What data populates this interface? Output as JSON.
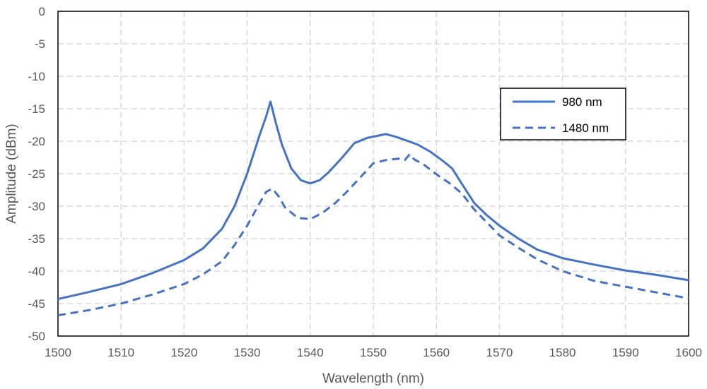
{
  "chart_data": {
    "type": "line",
    "title": "",
    "xlabel": "Wavelength (nm)",
    "ylabel": "Amplitude (dBm)",
    "xlim": [
      1500,
      1600
    ],
    "ylim": [
      -50,
      0
    ],
    "xticks": [
      1500,
      1510,
      1520,
      1530,
      1540,
      1550,
      1560,
      1570,
      1580,
      1590,
      1600
    ],
    "yticks": [
      0,
      -5,
      -10,
      -15,
      -20,
      -25,
      -30,
      -35,
      -40,
      -45,
      -50
    ],
    "grid": true,
    "legend_position": "right",
    "series": [
      {
        "name": "980 nm",
        "color": "#4472C4",
        "dash": "solid",
        "x": [
          1500,
          1505,
          1510,
          1515,
          1520,
          1523,
          1526,
          1528,
          1530,
          1531,
          1532,
          1533,
          1533.7,
          1534.5,
          1535.5,
          1537,
          1538.5,
          1540,
          1541.5,
          1543,
          1545,
          1547,
          1549,
          1550.5,
          1552,
          1553.5,
          1555,
          1557,
          1559,
          1561,
          1562.5,
          1564,
          1566,
          1568,
          1570,
          1573,
          1576,
          1580,
          1585,
          1590,
          1595,
          1600
        ],
        "y": [
          -44.3,
          -43.2,
          -42.0,
          -40.3,
          -38.3,
          -36.5,
          -33.5,
          -30.0,
          -25.0,
          -22.0,
          -19.0,
          -16.2,
          -13.9,
          -17.0,
          -20.5,
          -24.2,
          -26.0,
          -26.5,
          -26.0,
          -24.7,
          -22.6,
          -20.3,
          -19.5,
          -19.2,
          -18.9,
          -19.3,
          -19.8,
          -20.5,
          -21.6,
          -23.0,
          -24.2,
          -26.5,
          -29.5,
          -31.4,
          -33.0,
          -35.0,
          -36.7,
          -38.0,
          -39.0,
          -39.9,
          -40.6,
          -41.4
        ]
      },
      {
        "name": "1480 nm",
        "color": "#4472C4",
        "dash": "dashed",
        "x": [
          1500,
          1505,
          1510,
          1515,
          1520,
          1523,
          1526,
          1528,
          1530,
          1532,
          1533,
          1534,
          1535,
          1536,
          1538,
          1540,
          1542,
          1544,
          1546,
          1548,
          1550,
          1552,
          1554,
          1555,
          1555.8,
          1556.5,
          1558,
          1560,
          1562,
          1564,
          1566,
          1568,
          1570,
          1573,
          1576,
          1580,
          1585,
          1590,
          1595,
          1600
        ],
        "y": [
          -46.8,
          -46.0,
          -45.0,
          -43.6,
          -42.0,
          -40.5,
          -38.5,
          -36.0,
          -33.0,
          -29.5,
          -27.8,
          -27.3,
          -28.5,
          -30.2,
          -31.8,
          -32.0,
          -31.0,
          -29.5,
          -27.6,
          -25.5,
          -23.4,
          -22.9,
          -22.7,
          -22.9,
          -22.0,
          -22.8,
          -23.6,
          -25.1,
          -26.4,
          -28.0,
          -30.5,
          -32.5,
          -34.5,
          -36.4,
          -38.2,
          -40.0,
          -41.5,
          -42.4,
          -43.3,
          -44.2
        ]
      }
    ]
  }
}
